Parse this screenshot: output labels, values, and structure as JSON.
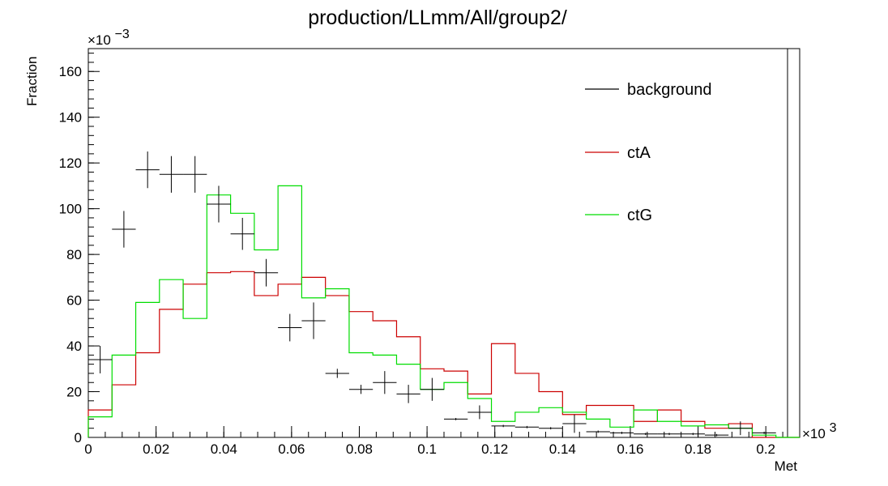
{
  "chart_data": {
    "type": "histogram",
    "title": "production/LLmm/All/group2/",
    "xlabel": "Met",
    "ylabel": "Fraction",
    "x_multiplier_label": "×10",
    "x_multiplier_exp": "3",
    "y_multiplier_label": "×10",
    "y_multiplier_exp": "−3",
    "xlim": [
      0,
      0.21
    ],
    "ylim": [
      0,
      170
    ],
    "x_major_ticks": [
      0,
      0.02,
      0.04,
      0.06,
      0.08,
      0.1,
      0.12,
      0.14,
      0.16,
      0.18,
      0.2
    ],
    "x_tick_labels": [
      "0",
      "0.02",
      "0.04",
      "0.06",
      "0.08",
      "0.1",
      "0.12",
      "0.14",
      "0.16",
      "0.18",
      "0.2"
    ],
    "y_major_ticks": [
      0,
      20,
      40,
      60,
      80,
      100,
      120,
      140,
      160
    ],
    "y_tick_labels": [
      "0",
      "20",
      "40",
      "60",
      "80",
      "100",
      "120",
      "140",
      "160"
    ],
    "bin_edges": [
      0,
      0.007,
      0.014,
      0.021,
      0.028,
      0.035,
      0.042,
      0.049,
      0.056,
      0.063,
      0.07,
      0.077,
      0.084,
      0.091,
      0.098,
      0.105,
      0.112,
      0.119,
      0.126,
      0.133,
      0.14,
      0.147,
      0.154,
      0.161,
      0.168,
      0.175,
      0.182,
      0.189,
      0.196,
      0.203,
      0.21
    ],
    "series": [
      {
        "name": "background",
        "style": "points",
        "color": "#000000",
        "values": [
          34,
          91,
          117,
          115,
          115,
          102,
          89,
          72,
          48,
          51,
          28,
          21,
          24,
          19,
          21,
          8,
          11,
          5,
          4.5,
          4,
          6,
          2.5,
          2,
          1.5,
          1.5,
          1.5,
          1,
          4,
          2,
          0
        ],
        "errors": [
          6,
          8,
          8,
          8,
          8,
          8,
          7,
          6,
          6,
          8,
          2,
          2,
          5,
          4,
          5,
          0.5,
          3,
          0.5,
          0.5,
          0.5,
          4,
          0.5,
          0.5,
          0.5,
          0.5,
          0.5,
          0.5,
          3,
          0.5,
          0
        ]
      },
      {
        "name": "ctA",
        "style": "step",
        "color": "#cc0000",
        "values": [
          12,
          23,
          37,
          56,
          67,
          72,
          72.5,
          62,
          67,
          70,
          62,
          55,
          51,
          44,
          30,
          29,
          19,
          41,
          28,
          20,
          10,
          14,
          14,
          7,
          12,
          7,
          4,
          6,
          0,
          0
        ]
      },
      {
        "name": "ctG",
        "style": "step",
        "color": "#00dd00",
        "values": [
          9,
          36,
          59,
          69,
          52,
          106,
          98,
          82,
          110,
          61,
          65,
          37,
          36,
          32,
          21,
          24,
          17,
          7,
          11,
          13,
          11,
          8,
          4.5,
          12,
          7,
          5,
          5.5,
          4,
          1,
          0
        ]
      }
    ],
    "legend": [
      "background",
      "ctA",
      "ctG"
    ],
    "legend_placement": "top-right",
    "grid": false
  }
}
